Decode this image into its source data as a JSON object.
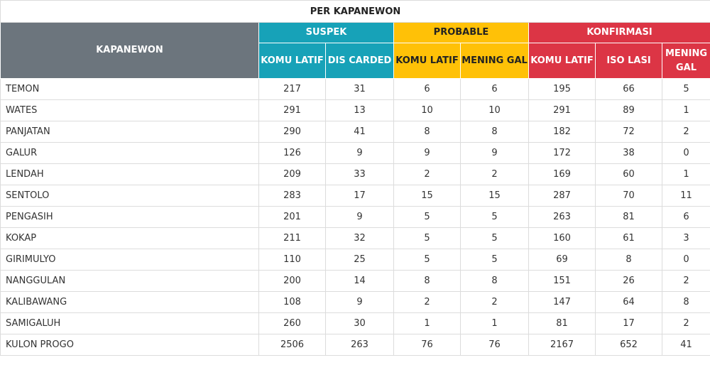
{
  "table": {
    "title": "PER KAPANEWON",
    "kapanewon_header": "KAPANEWON",
    "groups": {
      "suspek": "SUSPEK",
      "probable": "PROBABLE",
      "konfirmasi": "KONFIRMASI"
    },
    "subheaders": {
      "suspek_komulatif": "KOMU LATIF",
      "suspek_discarded": "DIS CARDED",
      "probable_komulatif": "KOMU LATIF",
      "probable_meninggal": "MENING GAL",
      "konfirmasi_komulatif": "KOMU LATIF",
      "konfirmasi_isolasi": "ISO LASI",
      "konfirmasi_meninggal": "MENING GAL"
    },
    "rows": [
      {
        "name": "TEMON",
        "values": [
          "217",
          "31",
          "6",
          "6",
          "195",
          "66",
          "5"
        ]
      },
      {
        "name": "WATES",
        "values": [
          "291",
          "13",
          "10",
          "10",
          "291",
          "89",
          "1"
        ]
      },
      {
        "name": "PANJATAN",
        "values": [
          "290",
          "41",
          "8",
          "8",
          "182",
          "72",
          "2"
        ]
      },
      {
        "name": "GALUR",
        "values": [
          "126",
          "9",
          "9",
          "9",
          "172",
          "38",
          "0"
        ]
      },
      {
        "name": "LENDAH",
        "values": [
          "209",
          "33",
          "2",
          "2",
          "169",
          "60",
          "1"
        ]
      },
      {
        "name": "SENTOLO",
        "values": [
          "283",
          "17",
          "15",
          "15",
          "287",
          "70",
          "11"
        ]
      },
      {
        "name": "PENGASIH",
        "values": [
          "201",
          "9",
          "5",
          "5",
          "263",
          "81",
          "6"
        ]
      },
      {
        "name": "KOKAP",
        "values": [
          "211",
          "32",
          "5",
          "5",
          "160",
          "61",
          "3"
        ]
      },
      {
        "name": "GIRIMULYO",
        "values": [
          "110",
          "25",
          "5",
          "5",
          "69",
          "8",
          "0"
        ]
      },
      {
        "name": "NANGGULAN",
        "values": [
          "200",
          "14",
          "8",
          "8",
          "151",
          "26",
          "2"
        ]
      },
      {
        "name": "KALIBAWANG",
        "values": [
          "108",
          "9",
          "2",
          "2",
          "147",
          "64",
          "8"
        ]
      },
      {
        "name": "SAMIGALUH",
        "values": [
          "260",
          "30",
          "1",
          "1",
          "81",
          "17",
          "2"
        ]
      },
      {
        "name": "KULON PROGO",
        "values": [
          "2506",
          "263",
          "76",
          "76",
          "2167",
          "652",
          "41"
        ]
      }
    ]
  },
  "colors": {
    "kapanewon": "#6c757d",
    "suspek": "#17a2b8",
    "probable": "#ffc107",
    "konfirmasi": "#dc3545"
  }
}
